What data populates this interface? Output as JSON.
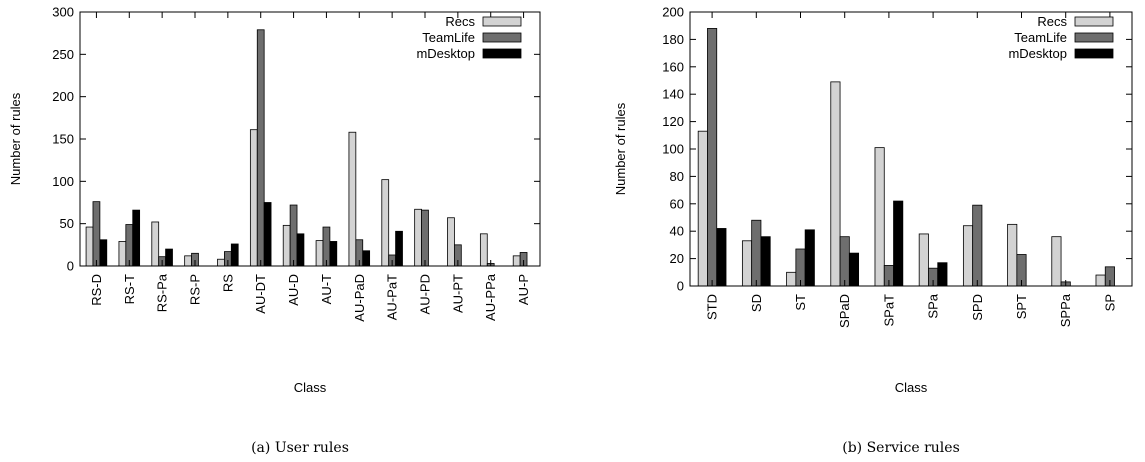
{
  "chart_data": [
    {
      "type": "bar",
      "caption": "(a) User rules",
      "xlabel": "Class",
      "ylabel": "Number of rules",
      "ylim": [
        0,
        300
      ],
      "yticks": [
        0,
        50,
        100,
        150,
        200,
        250,
        300
      ],
      "categories": [
        "RS-D",
        "RS-T",
        "RS-Pa",
        "RS-P",
        "RS",
        "AU-DT",
        "AU-D",
        "AU-T",
        "AU-PaD",
        "AU-PaT",
        "AU-PD",
        "AU-PT",
        "AU-PPa",
        "AU-P"
      ],
      "legend_position": "top-right",
      "series": [
        {
          "name": "Recs",
          "color": "#d3d3d3",
          "values": [
            46,
            29,
            52,
            12,
            8,
            161,
            48,
            30,
            158,
            102,
            67,
            57,
            38,
            12
          ]
        },
        {
          "name": "TeamLife",
          "color": "#6e6e6e",
          "values": [
            76,
            49,
            11,
            15,
            17,
            279,
            72,
            46,
            31,
            13,
            66,
            25,
            3,
            16
          ]
        },
        {
          "name": "mDesktop",
          "color": "#000000",
          "values": [
            31,
            66,
            20,
            0,
            26,
            75,
            38,
            29,
            18,
            41,
            0,
            0,
            0,
            0
          ]
        }
      ]
    },
    {
      "type": "bar",
      "caption": "(b) Service rules",
      "xlabel": "Class",
      "ylabel": "Number of rules",
      "ylim": [
        0,
        200
      ],
      "yticks": [
        0,
        20,
        40,
        60,
        80,
        100,
        120,
        140,
        160,
        180,
        200
      ],
      "categories": [
        "STD",
        "SD",
        "ST",
        "SPaD",
        "SPaT",
        "SPa",
        "SPD",
        "SPT",
        "SPPa",
        "SP"
      ],
      "legend_position": "top-right",
      "series": [
        {
          "name": "Recs",
          "color": "#d3d3d3",
          "values": [
            113,
            33,
            10,
            149,
            101,
            38,
            44,
            45,
            36,
            8
          ]
        },
        {
          "name": "TeamLife",
          "color": "#6e6e6e",
          "values": [
            188,
            48,
            27,
            36,
            15,
            13,
            59,
            23,
            3,
            14
          ]
        },
        {
          "name": "mDesktop",
          "color": "#000000",
          "values": [
            42,
            36,
            41,
            24,
            62,
            17,
            0,
            0,
            0,
            0
          ]
        }
      ]
    }
  ]
}
